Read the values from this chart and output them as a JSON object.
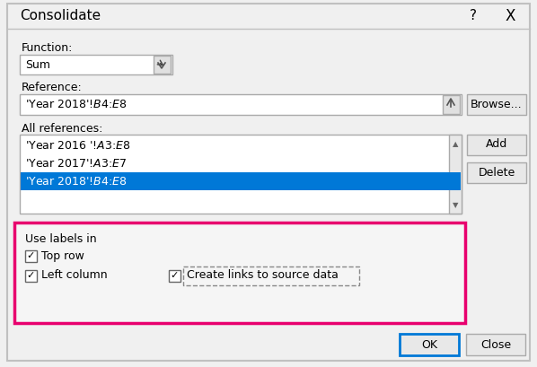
{
  "title": "Consolidate",
  "title_symbols": [
    "?",
    "X"
  ],
  "bg_color": "#f0f0f0",
  "dialog_bg": "#f0f0f0",
  "white": "#ffffff",
  "blue_highlight": "#0078d7",
  "pink_border": "#e8006e",
  "function_label": "Function:",
  "function_value": "Sum",
  "reference_label": "Reference:",
  "reference_value": "'Year 2018'!$B$4:$E$8",
  "all_references_label": "All references:",
  "references": [
    "'Year 2016 '!$A$3:$E$8",
    "'Year 2017'!$A$3:$E$7",
    "'Year 2018'!$B$4:$E$8"
  ],
  "highlighted_ref_index": 2,
  "buttons_right": [
    "Browse...",
    "Add",
    "Delete"
  ],
  "use_labels_title": "Use labels in",
  "checkboxes": [
    "Top row",
    "Left column"
  ],
  "create_links": "Create links to source data",
  "bottom_buttons": [
    "OK",
    "Close"
  ]
}
